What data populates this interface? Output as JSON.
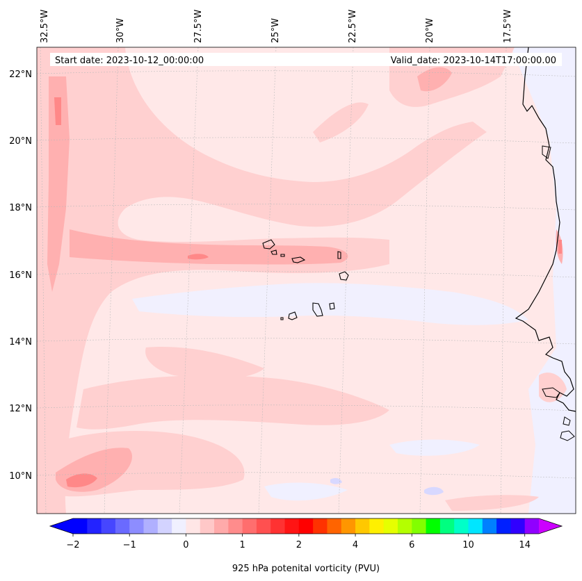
{
  "map": {
    "start_date": "Start date: 2023-10-12_00:00:00",
    "valid_date": "Valid_date: 2023-10-14T17:00:00.00",
    "lon_labels": [
      "32.5°W",
      "30°W",
      "27.5°W",
      "25°W",
      "22.5°W",
      "20°W",
      "17.5°W"
    ],
    "lat_labels": [
      "22°N",
      "20°N",
      "18°N",
      "16°N",
      "14°N",
      "12°N",
      "10°N"
    ],
    "variable": "925 hPa potential vorticity",
    "units": "PVU"
  },
  "colorbar": {
    "label": "925 hPa potenital vorticity (PVU)",
    "tick_labels": [
      "−2",
      "−1",
      "0",
      "1",
      "2",
      "4",
      "6",
      "10",
      "14"
    ],
    "colors": [
      "#0000ff",
      "#2323ff",
      "#4646ff",
      "#6a6aff",
      "#8d8dff",
      "#b0b0ff",
      "#d3d3ff",
      "#f0f0ff",
      "#ffe6e6",
      "#ffc8c8",
      "#ffaaaa",
      "#ff8c8c",
      "#ff6e6e",
      "#ff5050",
      "#ff3232",
      "#ff1414",
      "#ff0000",
      "#ff3200",
      "#ff6400",
      "#ff9600",
      "#ffc800",
      "#fff000",
      "#e6ff00",
      "#b4ff00",
      "#82ff00",
      "#00ff00",
      "#00ff80",
      "#00ffc8",
      "#00e6ff",
      "#0080ff",
      "#0020ff",
      "#3000ff",
      "#9000ff"
    ],
    "extend_low_color": "#0000ff",
    "extend_high_color": "#cc00ff"
  },
  "colors": {
    "background_field": "#ffe8e8",
    "band_light": "#ffd0d0",
    "band_mid": "#ffb0b0",
    "band_strong": "#ff8888",
    "negative_light": "#f0f0ff",
    "negative_mid": "#d8d8ff"
  }
}
